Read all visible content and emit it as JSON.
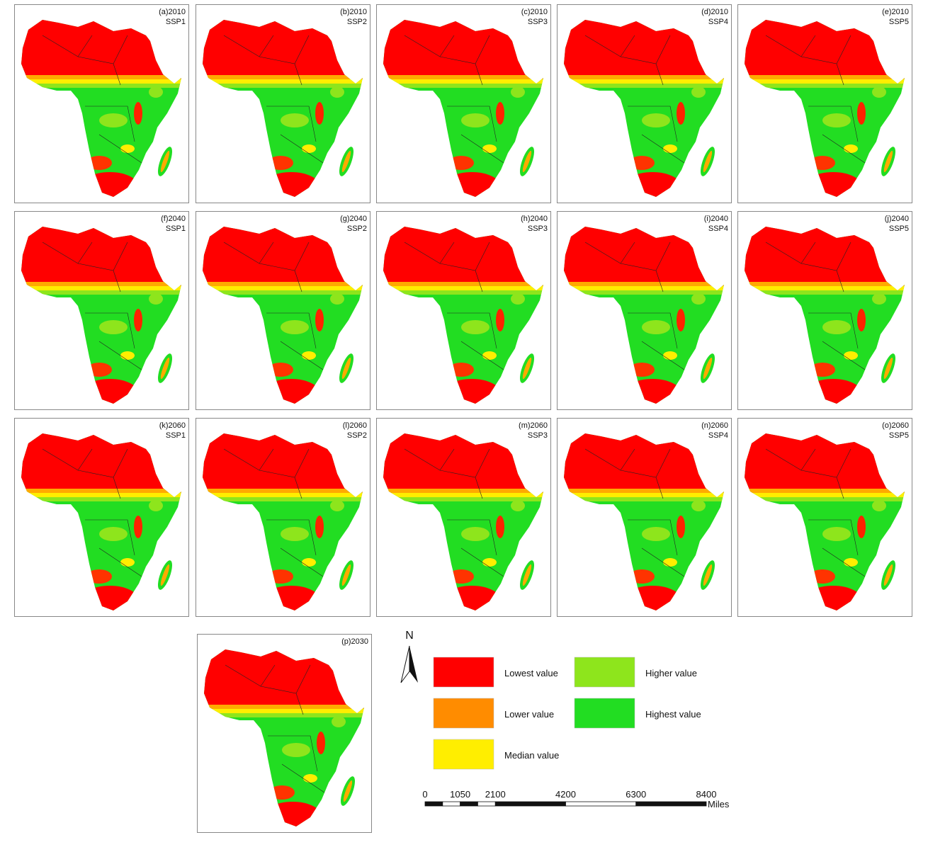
{
  "panels": [
    {
      "label": "(a)2010",
      "scenario": "SSP1"
    },
    {
      "label": "(b)2010",
      "scenario": "SSP2"
    },
    {
      "label": "(c)2010",
      "scenario": "SSP3"
    },
    {
      "label": "(d)2010",
      "scenario": "SSP4"
    },
    {
      "label": "(e)2010",
      "scenario": "SSP5"
    },
    {
      "label": "(f)2040",
      "scenario": "SSP1"
    },
    {
      "label": "(g)2040",
      "scenario": "SSP2"
    },
    {
      "label": "(h)2040",
      "scenario": "SSP3"
    },
    {
      "label": "(i)2040",
      "scenario": "SSP4"
    },
    {
      "label": "(j)2040",
      "scenario": "SSP5"
    },
    {
      "label": "(k)2060",
      "scenario": "SSP1"
    },
    {
      "label": "(l)2060",
      "scenario": "SSP2"
    },
    {
      "label": "(m)2060",
      "scenario": "SSP3"
    },
    {
      "label": "(n)2060",
      "scenario": "SSP4"
    },
    {
      "label": "(o)2060",
      "scenario": "SSP5"
    },
    {
      "label": "(p)2030"
    }
  ],
  "north": "N",
  "legend": [
    {
      "label": "Lowest value",
      "color": "#ff0000"
    },
    {
      "label": "Lower value",
      "color": "#ff8c00"
    },
    {
      "label": "Median value",
      "color": "#ffee00"
    },
    {
      "label": "Higher value",
      "color": "#8ee51c"
    },
    {
      "label": "Highest value",
      "color": "#22dd22"
    }
  ],
  "scale_bar": {
    "ticks": [
      0,
      1050,
      2100,
      4200,
      6300,
      8400
    ],
    "unit": "Miles"
  }
}
